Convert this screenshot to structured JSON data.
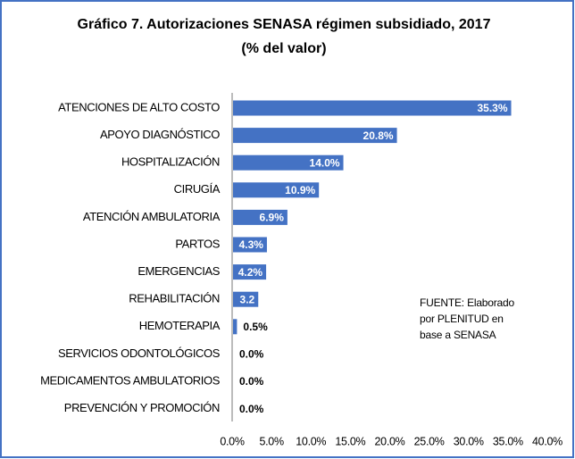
{
  "chart_data": {
    "type": "barh",
    "title": "Gráfico 7.  Autorizaciones SENASA régimen subsidiado, 2017",
    "subtitle": "(% del valor)",
    "categories": [
      "ATENCIONES DE ALTO COSTO",
      "APOYO DIAGNÓSTICO",
      "HOSPITALIZACIÓN",
      "CIRUGÍA",
      "ATENCIÓN AMBULATORIA",
      "PARTOS",
      "EMERGENCIAS",
      "REHABILITACIÓN",
      "HEMOTERAPIA",
      "SERVICIOS ODONTOLÓGICOS",
      "MEDICAMENTOS AMBULATORIOS",
      "PREVENCIÓN Y PROMOCIÓN"
    ],
    "values": [
      35.3,
      20.8,
      14.0,
      10.9,
      6.9,
      4.3,
      4.2,
      3.2,
      0.5,
      0.0,
      0.0,
      0.0
    ],
    "value_labels": [
      "35.3%",
      "20.8%",
      "14.0%",
      "10.9%",
      "6.9%",
      "4.3%",
      "4.2%",
      "3.2",
      "0.5%",
      "0.0%",
      "0.0%",
      "0.0%"
    ],
    "color": "#4472c4",
    "xlim": [
      0,
      40
    ],
    "xticks": [
      {
        "value": 0,
        "label": "0.0%"
      },
      {
        "value": 5,
        "label": "5.0%"
      },
      {
        "value": 10,
        "label": "10.0%"
      },
      {
        "value": 15,
        "label": "15.0%"
      },
      {
        "value": 20,
        "label": "20.0%"
      },
      {
        "value": 25,
        "label": "25.0%"
      },
      {
        "value": 30,
        "label": "30.0%"
      },
      {
        "value": 35,
        "label": "35.0%"
      },
      {
        "value": 40,
        "label": "40.0%"
      }
    ],
    "annotation": [
      "FUENTE: Elaborado",
      "por PLENITUD en",
      "base a SENASA"
    ]
  }
}
